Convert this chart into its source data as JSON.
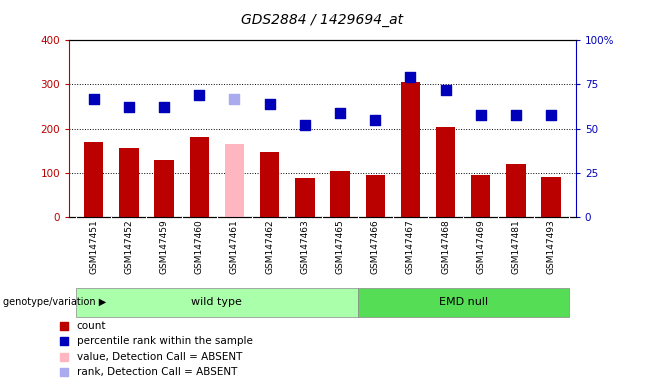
{
  "title": "GDS2884 / 1429694_at",
  "samples": [
    "GSM147451",
    "GSM147452",
    "GSM147459",
    "GSM147460",
    "GSM147461",
    "GSM147462",
    "GSM147463",
    "GSM147465",
    "GSM147466",
    "GSM147467",
    "GSM147468",
    "GSM147469",
    "GSM147481",
    "GSM147493"
  ],
  "count_values": [
    170,
    157,
    130,
    180,
    165,
    148,
    88,
    103,
    95,
    305,
    203,
    95,
    120,
    90
  ],
  "count_absent": [
    false,
    false,
    false,
    false,
    true,
    false,
    false,
    false,
    false,
    false,
    false,
    false,
    false,
    false
  ],
  "percentile_values": [
    67,
    62,
    62,
    69,
    67,
    64,
    52,
    59,
    55,
    79,
    72,
    58,
    58,
    58
  ],
  "percentile_absent": [
    false,
    false,
    false,
    false,
    true,
    false,
    false,
    false,
    false,
    false,
    false,
    false,
    false,
    false
  ],
  "groups": [
    {
      "label": "wild type",
      "start": 0,
      "end": 8
    },
    {
      "label": "EMD null",
      "start": 8,
      "end": 14
    }
  ],
  "ylim_left": [
    0,
    400
  ],
  "yticks_left": [
    0,
    100,
    200,
    300,
    400
  ],
  "ylim_right": [
    0,
    100
  ],
  "yticks_right": [
    0,
    25,
    50,
    75,
    100
  ],
  "yticklabels_right": [
    "0",
    "25",
    "50",
    "75",
    "100%"
  ],
  "bar_color_normal": "#BB0000",
  "bar_color_absent": "#FFB6C1",
  "dot_color_normal": "#0000BB",
  "dot_color_absent": "#AAAAEE",
  "grid_color": "#000000",
  "bg_color": "#FFFFFF",
  "plot_bg": "#FFFFFF",
  "tick_area_bg": "#CCCCCC",
  "group_color_wt": "#AAFFAA",
  "group_color_emd": "#55DD55",
  "bar_width": 0.55,
  "dot_size": 45
}
